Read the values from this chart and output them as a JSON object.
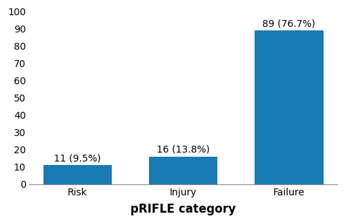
{
  "categories": [
    "Risk",
    "Injury",
    "Failure"
  ],
  "values": [
    11,
    16,
    89
  ],
  "labels": [
    "11 (9.5%)",
    "16 (13.8%)",
    "89 (76.7%)"
  ],
  "bar_color": "#1a7ab5",
  "xlabel": "pRIFLE category",
  "ylabel": "",
  "ylim": [
    0,
    100
  ],
  "yticks": [
    0,
    10,
    20,
    30,
    40,
    50,
    60,
    70,
    80,
    90,
    100
  ],
  "xlabel_fontsize": 12,
  "tick_fontsize": 10,
  "label_fontsize": 10,
  "background_color": "#ffffff"
}
